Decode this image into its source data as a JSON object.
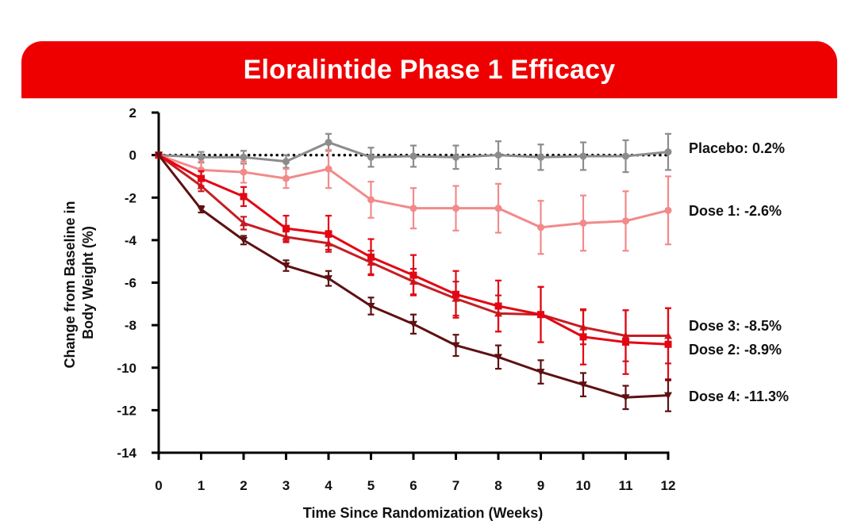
{
  "banner": {
    "title": "Eloralintide Phase 1 Efficacy"
  },
  "colors": {
    "banner": "#ee0000",
    "placebo": "#8c8c8c",
    "dose1": "#f28a8a",
    "dose2": "#e30613",
    "dose3": "#c41e24",
    "dose4": "#5e1012"
  },
  "chart_data": {
    "type": "line",
    "title": "Eloralintide Phase 1 Efficacy",
    "xlabel": "Time Since Randomization (Weeks)",
    "ylabel": "Change from Baseline in Body Weight (%)",
    "ylabel_lines": [
      "Change from Baseline in",
      "Body Weight (%)"
    ],
    "x": [
      0,
      1,
      2,
      3,
      4,
      5,
      6,
      7,
      8,
      9,
      10,
      11,
      12
    ],
    "xlim": [
      0,
      12
    ],
    "ylim": [
      -14,
      2
    ],
    "yticks": [
      2,
      0,
      -2,
      -4,
      -6,
      -8,
      -10,
      -12,
      -14
    ],
    "reference_line": 0,
    "grid": false,
    "series": [
      {
        "key": "placebo",
        "end_label": "Placebo: 0.2%",
        "color": "#8c8c8c",
        "marker": "circle",
        "values": [
          0,
          -0.1,
          -0.1,
          -0.3,
          0.6,
          -0.1,
          -0.05,
          -0.1,
          0.0,
          -0.1,
          -0.05,
          -0.05,
          0.15
        ],
        "errors": [
          0,
          0.25,
          0.3,
          0.3,
          0.4,
          0.45,
          0.5,
          0.55,
          0.65,
          0.6,
          0.65,
          0.75,
          0.85
        ]
      },
      {
        "key": "dose1",
        "end_label": "Dose 1: -2.6%",
        "color": "#f28a8a",
        "marker": "circle",
        "values": [
          0,
          -0.7,
          -0.8,
          -1.1,
          -0.65,
          -2.1,
          -2.5,
          -2.5,
          -2.5,
          -3.4,
          -3.2,
          -3.1,
          -2.6
        ],
        "errors": [
          0,
          0.4,
          0.5,
          0.45,
          0.9,
          0.85,
          0.95,
          1.05,
          1.15,
          1.25,
          1.3,
          1.4,
          1.6
        ]
      },
      {
        "key": "dose2",
        "end_label": "Dose 2: -8.9%",
        "color": "#e30613",
        "marker": "square",
        "values": [
          0,
          -1.1,
          -1.95,
          -3.45,
          -3.7,
          -4.8,
          -5.65,
          -6.55,
          -7.1,
          -7.5,
          -8.55,
          -8.8,
          -8.9
        ],
        "errors": [
          0,
          0.35,
          0.45,
          0.6,
          0.85,
          0.85,
          0.95,
          1.1,
          1.2,
          1.3,
          1.3,
          1.5,
          1.7
        ]
      },
      {
        "key": "dose3",
        "end_label": "Dose 3: -8.5%",
        "color": "#c41e24",
        "marker": "triangle",
        "values": [
          0,
          -1.45,
          -3.2,
          -3.85,
          -4.15,
          -5.05,
          -5.95,
          -6.75,
          -7.45,
          -7.5,
          -8.1,
          -8.5,
          -8.5
        ],
        "errors": [
          0,
          0.25,
          0.3,
          0.25,
          0.3,
          0.55,
          0.6,
          0.8,
          0.85,
          1.3,
          0.8,
          1.2,
          1.3
        ]
      },
      {
        "key": "dose4",
        "end_label": "Dose 4: -11.3%",
        "color": "#5e1012",
        "marker": "triangle-down",
        "values": [
          0,
          -2.55,
          -4.0,
          -5.2,
          -5.8,
          -7.1,
          -7.95,
          -8.95,
          -9.5,
          -10.2,
          -10.8,
          -11.4,
          -11.3
        ],
        "errors": [
          0,
          0.15,
          0.2,
          0.25,
          0.35,
          0.4,
          0.45,
          0.5,
          0.55,
          0.55,
          0.55,
          0.55,
          0.75
        ]
      }
    ]
  }
}
